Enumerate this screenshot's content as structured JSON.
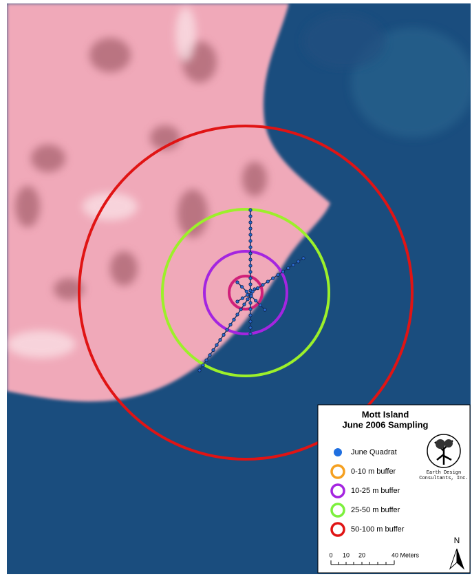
{
  "map": {
    "title": [
      "Mott Island",
      "June 2006 Sampling"
    ],
    "legend": [
      {
        "label": "June Quadrat",
        "kind": "dot",
        "color": "#1f6fe0"
      },
      {
        "label": "0-10 m buffer",
        "kind": "ring",
        "color": "#f5a020"
      },
      {
        "label": "10-25 m buffer",
        "kind": "ring",
        "color": "#a425e0"
      },
      {
        "label": "25-50 m buffer",
        "kind": "ring",
        "color": "#7cf03c"
      },
      {
        "label": "50-100 m buffer",
        "kind": "ring",
        "color": "#e01414"
      }
    ],
    "logo": [
      "Earth Design",
      "Consultants, Inc."
    ],
    "scale": [
      "0",
      "10",
      "20",
      "40 Meters"
    ],
    "north": "N"
  }
}
